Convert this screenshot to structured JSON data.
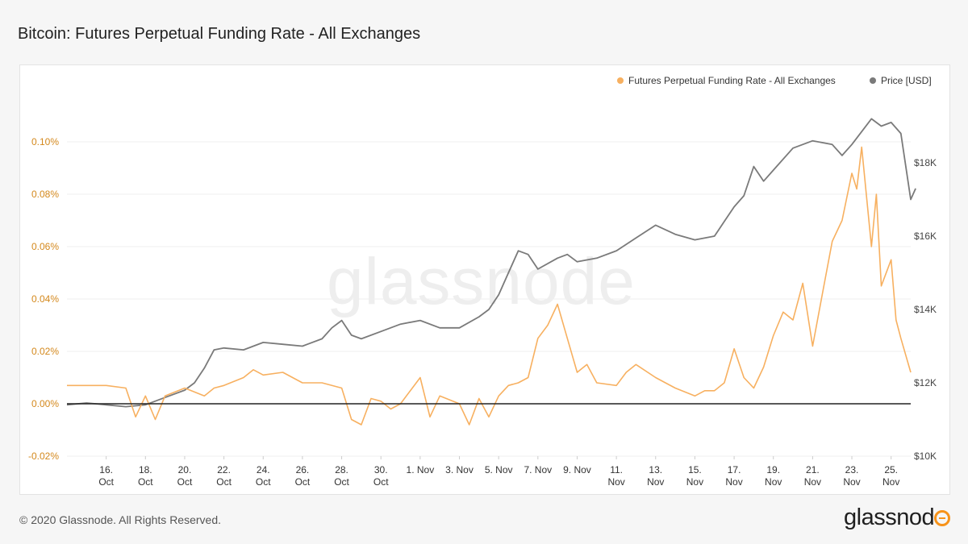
{
  "page": {
    "title": "Bitcoin: Futures Perpetual Funding Rate - All Exchanges",
    "footer": "© 2020 Glassnode. All Rights Reserved.",
    "logo_text": "glassnode",
    "watermark": "glassnode"
  },
  "colors": {
    "funding": "#f7b060",
    "price": "#7a7a7a",
    "left_axis": "#d4881c",
    "zero_line": "#222222",
    "logo_accent": "#f7931a"
  },
  "chart_data": {
    "type": "line",
    "title": "Bitcoin: Futures Perpetual Funding Rate - All Exchanges",
    "legend_position": "top-right",
    "grid": "horizontal",
    "x_range": [
      "2020-10-14",
      "2020-11-26"
    ],
    "x_ticks": [
      {
        "date": "2020-10-16",
        "line1": "16.",
        "line2": "Oct"
      },
      {
        "date": "2020-10-18",
        "line1": "18.",
        "line2": "Oct"
      },
      {
        "date": "2020-10-20",
        "line1": "20.",
        "line2": "Oct"
      },
      {
        "date": "2020-10-22",
        "line1": "22.",
        "line2": "Oct"
      },
      {
        "date": "2020-10-24",
        "line1": "24.",
        "line2": "Oct"
      },
      {
        "date": "2020-10-26",
        "line1": "26.",
        "line2": "Oct"
      },
      {
        "date": "2020-10-28",
        "line1": "28.",
        "line2": "Oct"
      },
      {
        "date": "2020-10-30",
        "line1": "30.",
        "line2": "Oct"
      },
      {
        "date": "2020-11-01",
        "line1": "1. Nov",
        "line2": ""
      },
      {
        "date": "2020-11-03",
        "line1": "3. Nov",
        "line2": ""
      },
      {
        "date": "2020-11-05",
        "line1": "5. Nov",
        "line2": ""
      },
      {
        "date": "2020-11-07",
        "line1": "7. Nov",
        "line2": ""
      },
      {
        "date": "2020-11-09",
        "line1": "9. Nov",
        "line2": ""
      },
      {
        "date": "2020-11-11",
        "line1": "11.",
        "line2": "Nov"
      },
      {
        "date": "2020-11-13",
        "line1": "13.",
        "line2": "Nov"
      },
      {
        "date": "2020-11-15",
        "line1": "15.",
        "line2": "Nov"
      },
      {
        "date": "2020-11-17",
        "line1": "17.",
        "line2": "Nov"
      },
      {
        "date": "2020-11-19",
        "line1": "19.",
        "line2": "Nov"
      },
      {
        "date": "2020-11-21",
        "line1": "21.",
        "line2": "Nov"
      },
      {
        "date": "2020-11-23",
        "line1": "23.",
        "line2": "Nov"
      },
      {
        "date": "2020-11-25",
        "line1": "25.",
        "line2": "Nov"
      }
    ],
    "y_left": {
      "range": [
        -0.02,
        0.12
      ],
      "ticks": [
        {
          "value": -0.02,
          "label": "-0.02%"
        },
        {
          "value": 0.0,
          "label": "0.00%"
        },
        {
          "value": 0.02,
          "label": "0.02%"
        },
        {
          "value": 0.04,
          "label": "0.04%"
        },
        {
          "value": 0.06,
          "label": "0.06%"
        },
        {
          "value": 0.08,
          "label": "0.08%"
        },
        {
          "value": 0.1,
          "label": "0.10%"
        }
      ]
    },
    "y_right": {
      "range": [
        10000,
        20000
      ],
      "ticks": [
        {
          "value": 10000,
          "label": "$10K"
        },
        {
          "value": 12000,
          "label": "$12K"
        },
        {
          "value": 14000,
          "label": "$14K"
        },
        {
          "value": 16000,
          "label": "$16K"
        },
        {
          "value": 18000,
          "label": "$18K"
        }
      ]
    },
    "series": [
      {
        "name": "Futures Perpetual Funding Rate - All Exchanges",
        "axis": "left",
        "x": [
          "2020-10-14",
          "2020-10-15",
          "2020-10-16",
          "2020-10-17",
          "2020-10-17 12:00",
          "2020-10-18",
          "2020-10-18 12:00",
          "2020-10-19",
          "2020-10-20",
          "2020-10-21",
          "2020-10-21 12:00",
          "2020-10-22",
          "2020-10-23",
          "2020-10-23 12:00",
          "2020-10-24",
          "2020-10-25",
          "2020-10-26",
          "2020-10-27",
          "2020-10-28",
          "2020-10-28 12:00",
          "2020-10-29",
          "2020-10-29 12:00",
          "2020-10-30",
          "2020-10-30 12:00",
          "2020-10-31",
          "2020-11-01",
          "2020-11-01 12:00",
          "2020-11-02",
          "2020-11-03",
          "2020-11-03 12:00",
          "2020-11-04",
          "2020-11-04 12:00",
          "2020-11-05",
          "2020-11-05 12:00",
          "2020-11-06",
          "2020-11-06 12:00",
          "2020-11-07",
          "2020-11-07 12:00",
          "2020-11-08",
          "2020-11-08 12:00",
          "2020-11-09",
          "2020-11-09 12:00",
          "2020-11-10",
          "2020-11-11",
          "2020-11-11 12:00",
          "2020-11-12",
          "2020-11-13",
          "2020-11-13 12:00",
          "2020-11-14",
          "2020-11-15",
          "2020-11-15 12:00",
          "2020-11-16",
          "2020-11-16 12:00",
          "2020-11-17",
          "2020-11-17 12:00",
          "2020-11-18",
          "2020-11-18 12:00",
          "2020-11-19",
          "2020-11-19 12:00",
          "2020-11-20",
          "2020-11-20 12:00",
          "2020-11-21",
          "2020-11-21 12:00",
          "2020-11-22",
          "2020-11-22 12:00",
          "2020-11-23",
          "2020-11-23 06:00",
          "2020-11-23 12:00",
          "2020-11-24",
          "2020-11-24 06:00",
          "2020-11-24 12:00",
          "2020-11-25",
          "2020-11-25 06:00",
          "2020-11-25 12:00",
          "2020-11-26"
        ],
        "values": [
          0.007,
          0.007,
          0.007,
          0.006,
          -0.005,
          0.003,
          -0.006,
          0.003,
          0.006,
          0.003,
          0.006,
          0.007,
          0.01,
          0.013,
          0.011,
          0.012,
          0.008,
          0.008,
          0.006,
          -0.006,
          -0.008,
          0.002,
          0.001,
          -0.002,
          0.0,
          0.01,
          -0.005,
          0.003,
          0.0,
          -0.008,
          0.002,
          -0.005,
          0.003,
          0.007,
          0.008,
          0.01,
          0.025,
          0.03,
          0.038,
          0.025,
          0.012,
          0.015,
          0.008,
          0.007,
          0.012,
          0.015,
          0.01,
          0.008,
          0.006,
          0.003,
          0.005,
          0.005,
          0.008,
          0.021,
          0.01,
          0.006,
          0.014,
          0.026,
          0.035,
          0.032,
          0.046,
          0.022,
          0.042,
          0.062,
          0.07,
          0.088,
          0.082,
          0.098,
          0.06,
          0.08,
          0.045,
          0.055,
          0.032,
          0.025,
          0.012
        ]
      },
      {
        "name": "Price [USD]",
        "axis": "right",
        "x": [
          "2020-10-14",
          "2020-10-15",
          "2020-10-16",
          "2020-10-17",
          "2020-10-18",
          "2020-10-19",
          "2020-10-20",
          "2020-10-20 12:00",
          "2020-10-21",
          "2020-10-21 12:00",
          "2020-10-22",
          "2020-10-23",
          "2020-10-24",
          "2020-10-25",
          "2020-10-26",
          "2020-10-27",
          "2020-10-27 12:00",
          "2020-10-28",
          "2020-10-28 12:00",
          "2020-10-29",
          "2020-10-30",
          "2020-10-31",
          "2020-11-01",
          "2020-11-02",
          "2020-11-03",
          "2020-11-04",
          "2020-11-04 12:00",
          "2020-11-05",
          "2020-11-05 12:00",
          "2020-11-06",
          "2020-11-06 12:00",
          "2020-11-07",
          "2020-11-08",
          "2020-11-08 12:00",
          "2020-11-09",
          "2020-11-10",
          "2020-11-11",
          "2020-11-12",
          "2020-11-13",
          "2020-11-14",
          "2020-11-15",
          "2020-11-16",
          "2020-11-16 12:00",
          "2020-11-17",
          "2020-11-17 12:00",
          "2020-11-18",
          "2020-11-18 12:00",
          "2020-11-19",
          "2020-11-20",
          "2020-11-21",
          "2020-11-22",
          "2020-11-22 12:00",
          "2020-11-23",
          "2020-11-24",
          "2020-11-24 12:00",
          "2020-11-25",
          "2020-11-25 12:00",
          "2020-11-26",
          "2020-11-26 06:00"
        ],
        "values": [
          11400,
          11450,
          11400,
          11350,
          11400,
          11600,
          11800,
          12000,
          12400,
          12900,
          12950,
          12900,
          13100,
          13050,
          13000,
          13200,
          13500,
          13700,
          13300,
          13200,
          13400,
          13600,
          13700,
          13500,
          13500,
          13800,
          14000,
          14400,
          15000,
          15600,
          15500,
          15100,
          15400,
          15500,
          15300,
          15400,
          15600,
          15950,
          16300,
          16050,
          15900,
          16000,
          16400,
          16800,
          17100,
          17900,
          17500,
          17800,
          18400,
          18600,
          18500,
          18200,
          18500,
          19200,
          19000,
          19100,
          18800,
          17000,
          17300
        ]
      }
    ]
  }
}
